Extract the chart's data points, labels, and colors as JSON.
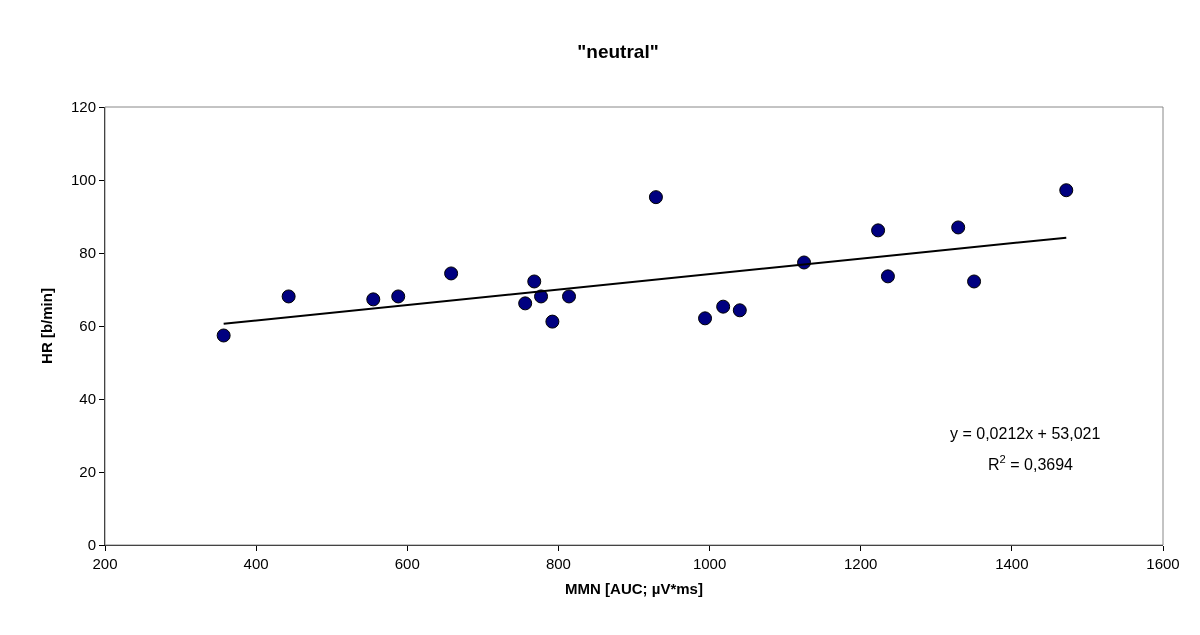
{
  "chart_data": {
    "type": "scatter",
    "title": "\"neutral\"",
    "xlabel": "MMN [AUC; µV*ms]",
    "ylabel": "HR [b/min]",
    "series": [
      {
        "color": "#000080",
        "marker": "circle",
        "x": [
          357,
          443,
          555,
          588,
          658,
          756,
          768,
          777,
          792,
          814,
          929,
          994,
          1018,
          1040,
          1125,
          1223,
          1236,
          1329,
          1350,
          1472
        ],
        "values": [
          57.4,
          68.1,
          67.3,
          68.1,
          74.4,
          66.2,
          72.2,
          68.1,
          61.2,
          68.1,
          95.3,
          62.1,
          65.3,
          64.3,
          77.4,
          86.2,
          73.6,
          87.0,
          72.2,
          97.2
        ]
      },
      {
        "type": "line",
        "color": "#000000",
        "marker": "none",
        "x": [
          357,
          1472
        ],
        "values": [
          60.6,
          84.2
        ]
      }
    ],
    "annotations": [
      "y = 0,0212x + 53,021",
      "R$^{2}$ = 0,3694"
    ],
    "xlim": [
      200,
      1600
    ],
    "xticks": [
      200,
      400,
      600,
      800,
      1000,
      1200,
      1400,
      1600
    ],
    "ylim": [
      0,
      120
    ],
    "yticks": [
      0,
      20,
      40,
      60,
      80,
      100,
      120
    ]
  }
}
